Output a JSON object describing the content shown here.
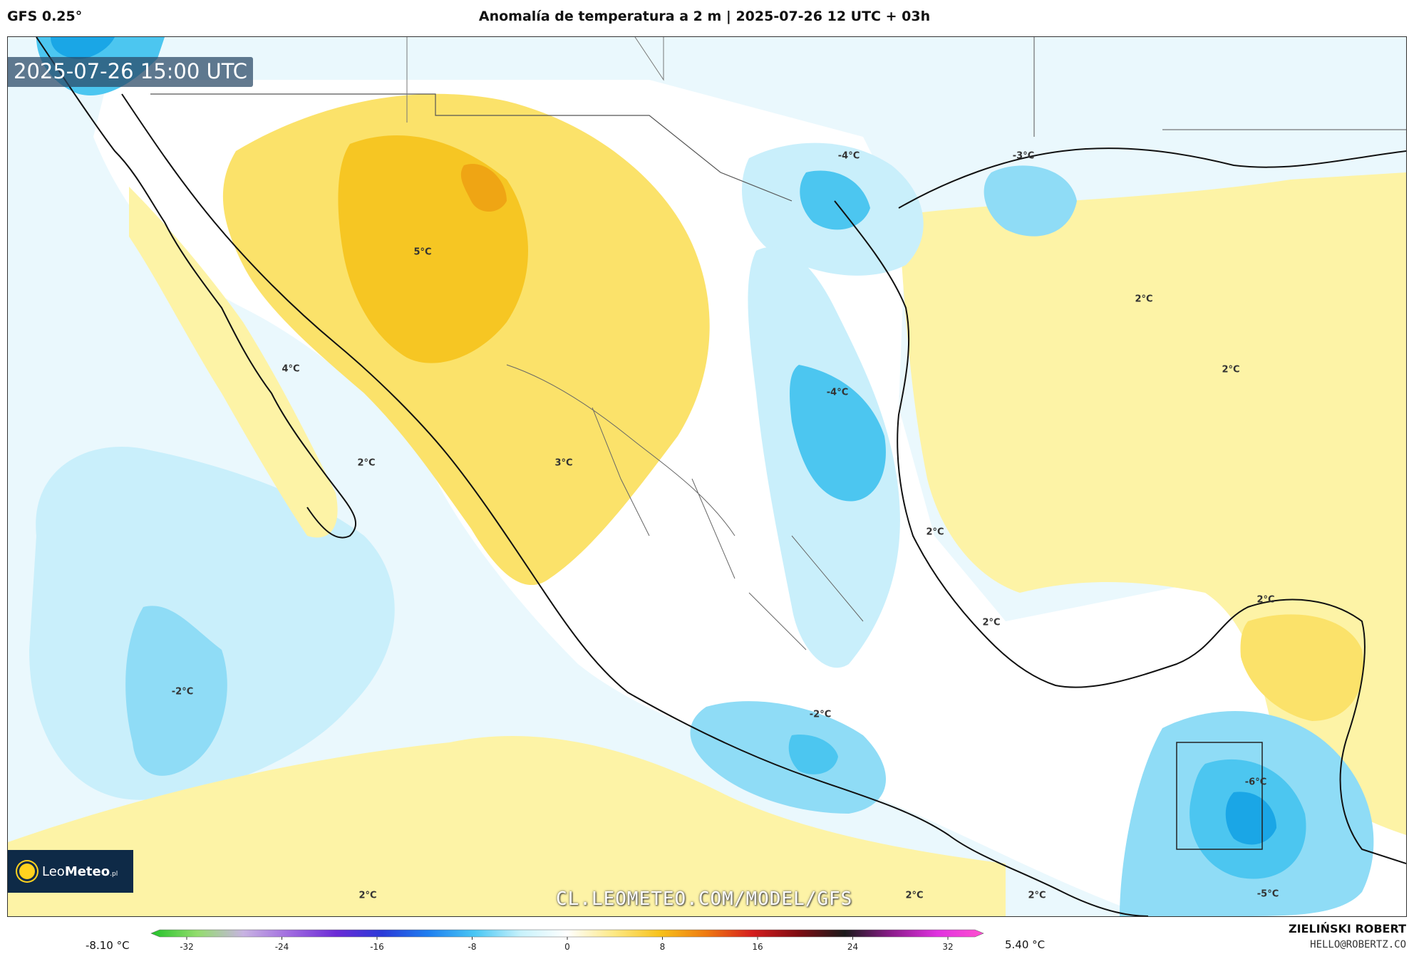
{
  "header": {
    "model": "GFS 0.25°",
    "title": "Anomalía de temperatura a 2 m | 2025-07-26 12 UTC + 03h"
  },
  "map": {
    "timestamp": "2025-07-26 15:00 UTC",
    "watermark": "CL.LEOMETEO.COM/MODEL/GFS",
    "logo": {
      "name_light": "Leo",
      "name_bold": "Meteo",
      "suffix": ".pl"
    },
    "contour_labels": [
      {
        "text": "5°C"
      },
      {
        "text": "4°C"
      },
      {
        "text": "3°C"
      },
      {
        "text": "2°C"
      },
      {
        "text": "-4°C"
      },
      {
        "text": "-3°C"
      },
      {
        "text": "2°C"
      },
      {
        "text": "2°C"
      },
      {
        "text": "-4°C"
      },
      {
        "text": "2°C"
      },
      {
        "text": "2°C"
      },
      {
        "text": "2°C"
      },
      {
        "text": "-2°C"
      },
      {
        "text": "-2°C"
      },
      {
        "text": "-6°C"
      },
      {
        "text": "2°C"
      },
      {
        "text": "2°C"
      },
      {
        "text": "2°C"
      },
      {
        "text": "-5°C"
      }
    ],
    "colors": {
      "warm_light": "#fdf3a6",
      "warm_mid": "#fbe26a",
      "warm_strong": "#f6c623",
      "warm_peak": "#efa514",
      "cold_light": "#c9effb",
      "cold_mid": "#8fdcf6",
      "cold_strong": "#4cc6f0",
      "cold_peak": "#1aa6e6",
      "coast": "#111111",
      "border": "#555555"
    }
  },
  "colorbar": {
    "min_label": "-8.10 °C",
    "max_label": "5.40 °C",
    "ticks": [
      "-32",
      "-24",
      "-16",
      "-8",
      "0",
      "8",
      "16",
      "24",
      "32"
    ],
    "stops": [
      "#22c22a",
      "#93dd6d",
      "#c8b3e2",
      "#a06be0",
      "#6b2bd6",
      "#2a3ad8",
      "#1e7ff0",
      "#49c7f4",
      "#c8f2fb",
      "#ffffff",
      "#fde985",
      "#f7c21b",
      "#ef7a10",
      "#d51e1e",
      "#7e0c12",
      "#1a1a1a",
      "#8a1c8a",
      "#e032e0",
      "#ff4fcf"
    ]
  },
  "credit": {
    "name": "ZIELIŃSKI ROBERT",
    "email": "HELLO@ROBERTZ.CO"
  }
}
